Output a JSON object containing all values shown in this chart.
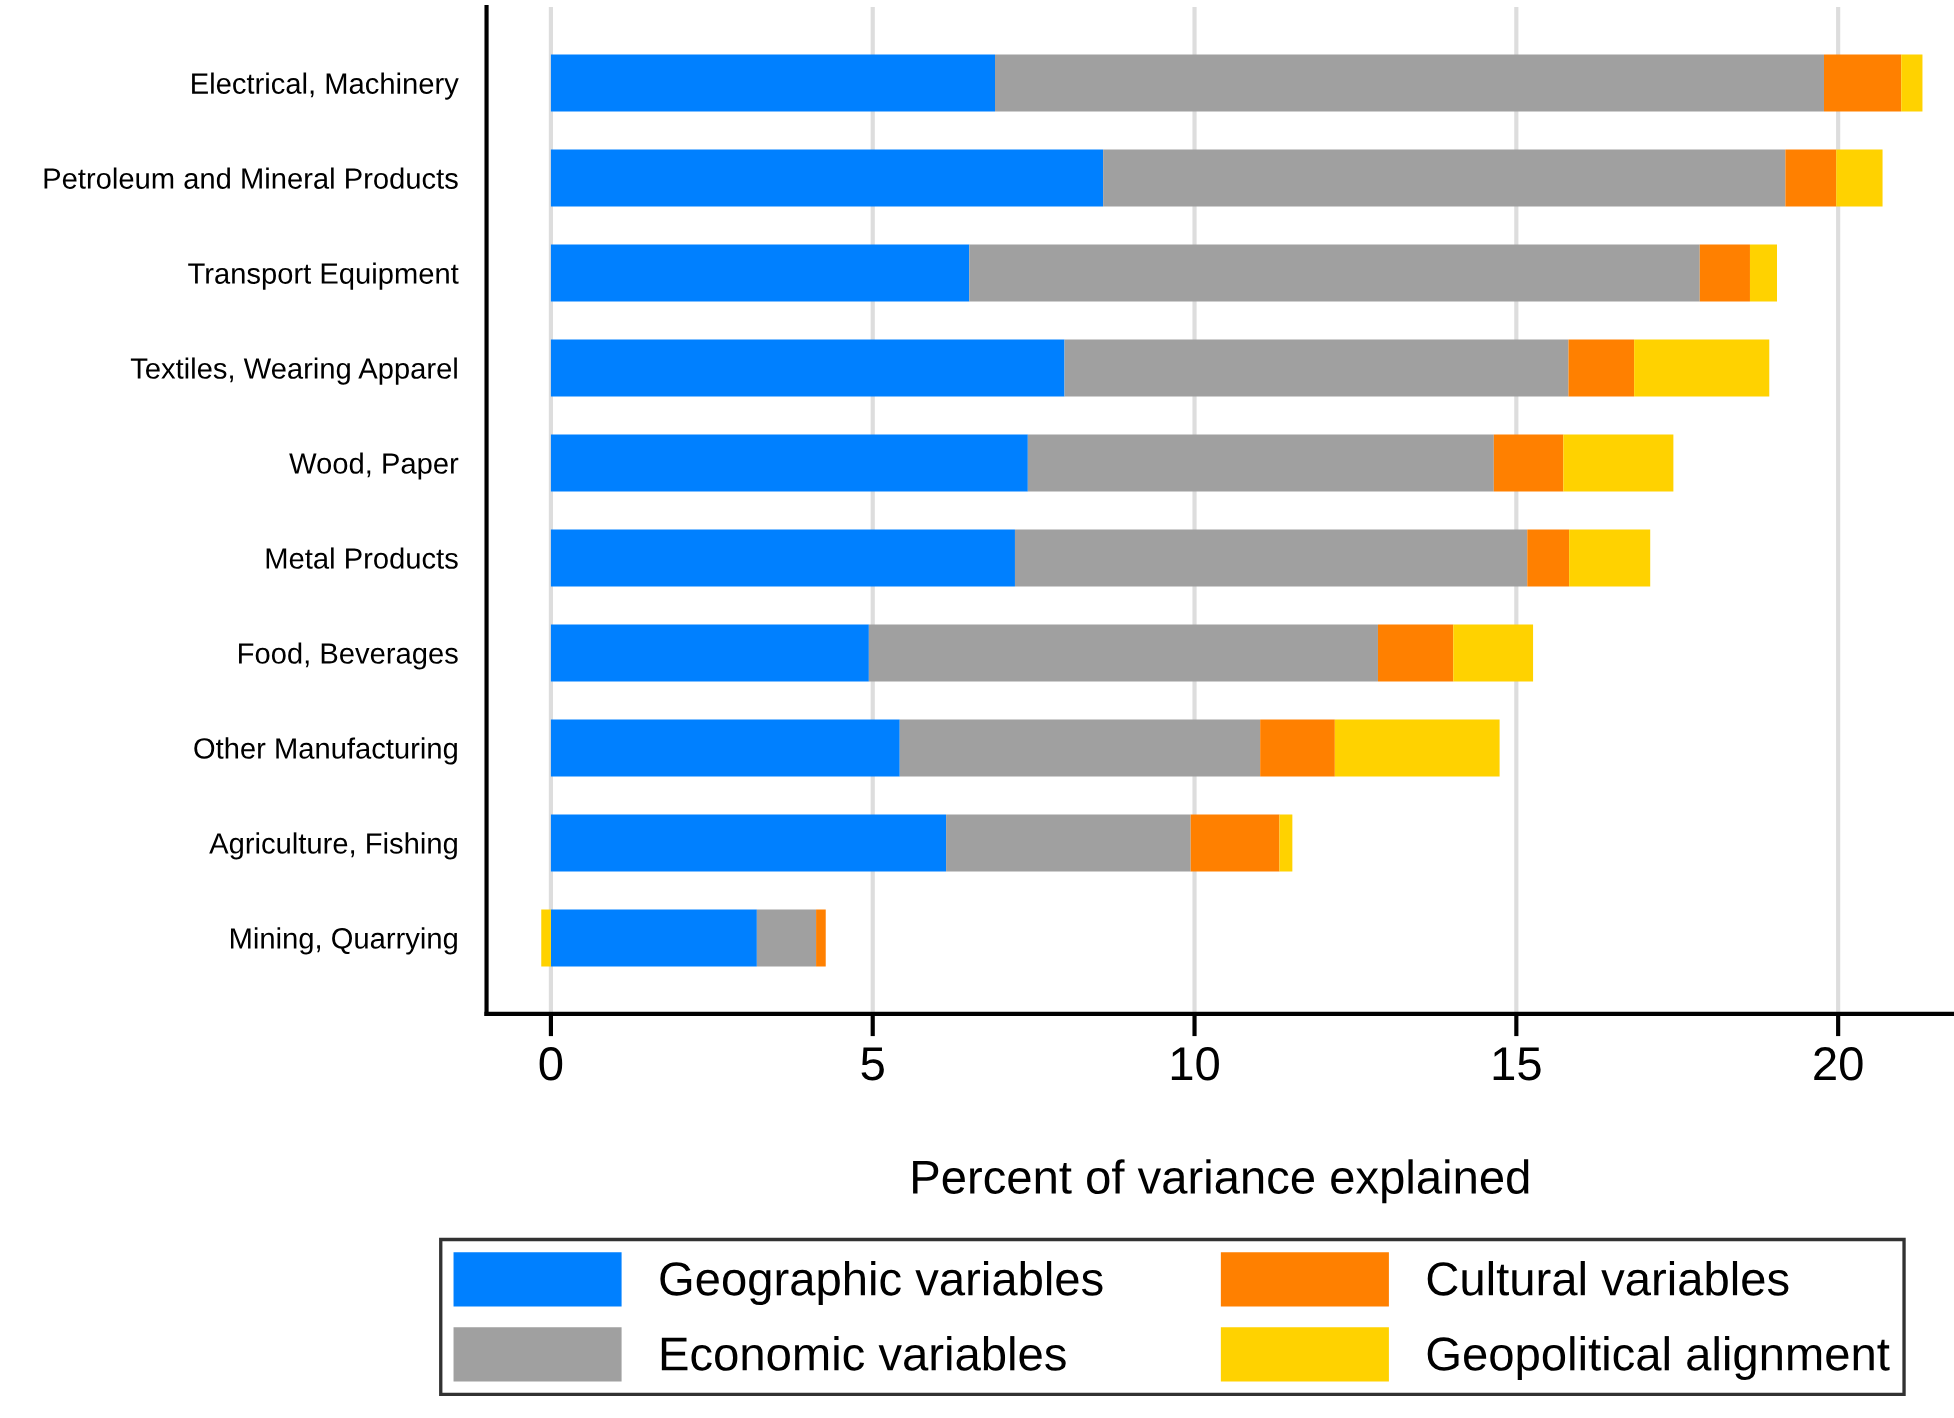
{
  "chart_data": {
    "type": "bar",
    "orientation": "horizontal",
    "stacked": true,
    "xlabel": "Percent of variance explained",
    "categories": [
      "Electrical, Machinery",
      "Petroleum and Mineral Products",
      "Transport Equipment",
      "Textiles, Wearing Apparel",
      "Wood, Paper",
      "Metal Products",
      "Food, Beverages",
      "Other Manufacturing",
      "Agriculture, Fishing",
      "Mining, Quarrying"
    ],
    "series": [
      {
        "name": "Geographic variables",
        "color": "#0080ff",
        "values": [
          6.9,
          8.58,
          6.5,
          7.98,
          7.41,
          7.21,
          4.94,
          5.42,
          6.14,
          3.2
        ]
      },
      {
        "name": "Economic variables",
        "color": "#a0a0a0",
        "values": [
          12.88,
          10.6,
          11.35,
          7.83,
          7.24,
          7.96,
          7.91,
          5.6,
          3.8,
          0.92
        ]
      },
      {
        "name": "Cultural variables",
        "color": "#ff8000",
        "values": [
          1.2,
          0.79,
          0.78,
          1.02,
          1.08,
          0.65,
          1.17,
          1.16,
          1.38,
          0.15
        ]
      },
      {
        "name": "Geopolitical alignment",
        "color": "#ffd200",
        "values": [
          0.33,
          0.72,
          0.42,
          2.1,
          1.71,
          1.26,
          1.24,
          2.56,
          0.2,
          -0.15
        ]
      }
    ],
    "xlim": [
      -1,
      21.8
    ],
    "xticks": [
      0,
      5,
      10,
      15,
      20
    ],
    "grid": "x",
    "legend": "bottom"
  }
}
